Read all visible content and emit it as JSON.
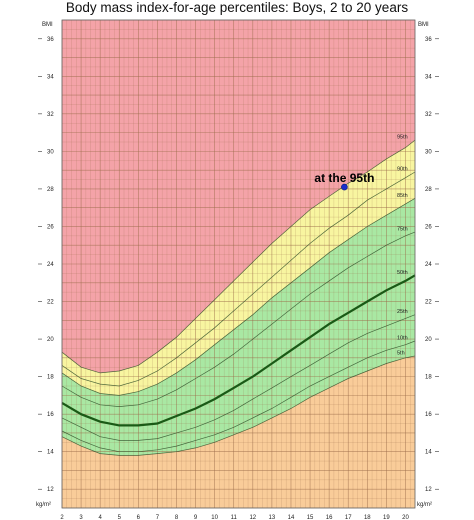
{
  "chart_data": {
    "type": "line",
    "title": "Body mass index-for-age percentiles: Boys, 2 to 20 years",
    "xlabel": "",
    "ylabel": "BMI",
    "y_unit_label": "kg/m²",
    "xlim": [
      2,
      20.5
    ],
    "ylim": [
      11,
      37
    ],
    "x_ticks": [
      2,
      3,
      4,
      5,
      6,
      7,
      8,
      9,
      10,
      11,
      12,
      13,
      14,
      15,
      16,
      17,
      18,
      19,
      20
    ],
    "y_ticks": [
      12,
      14,
      16,
      18,
      20,
      22,
      24,
      26,
      28,
      30,
      32,
      34,
      36
    ],
    "grid": true,
    "x": [
      2,
      3,
      4,
      5,
      6,
      7,
      8,
      9,
      10,
      11,
      12,
      13,
      14,
      15,
      16,
      17,
      18,
      19,
      20,
      20.5
    ],
    "series": [
      {
        "name": "5th",
        "values": [
          14.8,
          14.3,
          13.9,
          13.8,
          13.8,
          13.9,
          14.0,
          14.2,
          14.5,
          14.9,
          15.3,
          15.8,
          16.3,
          16.9,
          17.4,
          17.9,
          18.3,
          18.7,
          19.0,
          19.1
        ]
      },
      {
        "name": "10th",
        "values": [
          15.1,
          14.6,
          14.2,
          14.0,
          14.0,
          14.1,
          14.3,
          14.6,
          14.9,
          15.3,
          15.8,
          16.3,
          16.9,
          17.5,
          18.0,
          18.5,
          19.0,
          19.4,
          19.7,
          19.9
        ]
      },
      {
        "name": "25th",
        "values": [
          15.8,
          15.3,
          14.8,
          14.6,
          14.6,
          14.7,
          15.0,
          15.3,
          15.7,
          16.2,
          16.8,
          17.4,
          18.0,
          18.6,
          19.2,
          19.8,
          20.3,
          20.7,
          21.1,
          21.3
        ]
      },
      {
        "name": "50th",
        "values": [
          16.6,
          16.0,
          15.6,
          15.4,
          15.4,
          15.5,
          15.9,
          16.3,
          16.8,
          17.4,
          18.0,
          18.7,
          19.4,
          20.1,
          20.8,
          21.4,
          22.0,
          22.6,
          23.1,
          23.4
        ]
      },
      {
        "name": "75th",
        "values": [
          17.5,
          16.9,
          16.5,
          16.4,
          16.5,
          16.8,
          17.3,
          17.9,
          18.5,
          19.2,
          20.0,
          20.8,
          21.6,
          22.4,
          23.1,
          23.8,
          24.4,
          25.0,
          25.5,
          25.7
        ]
      },
      {
        "name": "85th",
        "values": [
          18.2,
          17.5,
          17.1,
          17.0,
          17.2,
          17.6,
          18.2,
          18.9,
          19.7,
          20.5,
          21.3,
          22.2,
          23.0,
          23.8,
          24.6,
          25.3,
          26.0,
          26.6,
          27.2,
          27.5
        ]
      },
      {
        "name": "90th",
        "values": [
          18.6,
          17.9,
          17.6,
          17.5,
          17.8,
          18.3,
          19.0,
          19.8,
          20.6,
          21.5,
          22.4,
          23.3,
          24.2,
          25.1,
          25.9,
          26.6,
          27.4,
          28.0,
          28.6,
          28.9
        ]
      },
      {
        "name": "95th",
        "values": [
          19.3,
          18.5,
          18.2,
          18.3,
          18.6,
          19.3,
          20.1,
          21.1,
          22.1,
          23.1,
          24.1,
          25.1,
          26.0,
          26.9,
          27.6,
          28.3,
          28.9,
          29.6,
          30.2,
          30.6
        ]
      }
    ],
    "points": [
      {
        "x": 16.8,
        "y": 28.1,
        "label": "at the 95th"
      }
    ],
    "colors": {
      "obese": "#f4a3a8",
      "overweight": "#f8f5a0",
      "healthy": "#a9e8a3",
      "underweight": "#f9cc99",
      "grid": "#9b6b4a",
      "curve": "#2b4a24",
      "curve_50th": "#1a5a16",
      "marker": "#1a2ecc"
    }
  }
}
